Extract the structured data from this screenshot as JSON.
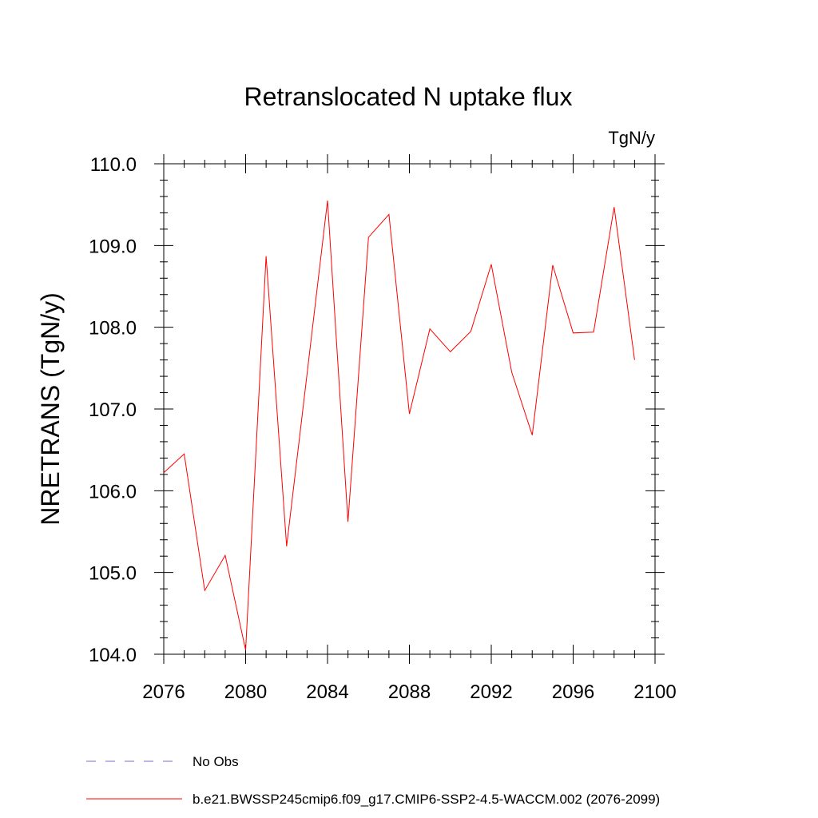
{
  "chart_data": {
    "type": "line",
    "title": "Retranslocated N uptake flux",
    "units": "TgN/y",
    "ylabel": "NRETRANS  (TgN/y)",
    "xlabel": "",
    "xlim": [
      2076,
      2100
    ],
    "ylim": [
      104.0,
      110.0
    ],
    "xticks": [
      2076,
      2080,
      2084,
      2088,
      2092,
      2096,
      2100
    ],
    "xtick_labels": [
      "2076",
      "2080",
      "2084",
      "2088",
      "2092",
      "2096",
      "2100"
    ],
    "yticks": [
      104.0,
      105.0,
      106.0,
      107.0,
      108.0,
      109.0,
      110.0
    ],
    "ytick_labels": [
      "104.0",
      "105.0",
      "106.0",
      "107.0",
      "108.0",
      "109.0",
      "110.0"
    ],
    "grid": false,
    "legend_position": "bottom",
    "series": [
      {
        "name": "b.e21.BWSSP245cmip6.f09_g17.CMIP6-SSP2-4.5-WACCM.002 (2076-2099)",
        "color": "#ff0000",
        "dash": "solid",
        "x": [
          2076,
          2077,
          2078,
          2079,
          2080,
          2081,
          2082,
          2083,
          2084,
          2085,
          2086,
          2087,
          2088,
          2089,
          2090,
          2091,
          2092,
          2093,
          2094,
          2095,
          2096,
          2097,
          2098,
          2099
        ],
        "y": [
          106.22,
          106.45,
          104.78,
          105.21,
          104.05,
          108.87,
          105.32,
          107.43,
          109.55,
          105.62,
          109.1,
          109.38,
          106.94,
          107.98,
          107.7,
          107.95,
          108.77,
          107.45,
          106.68,
          108.76,
          107.93,
          107.94,
          109.47,
          107.6
        ]
      }
    ],
    "legend": [
      {
        "label": "No Obs",
        "color": "#7b68c8",
        "dash": "dashed"
      },
      {
        "label": "b.e21.BWSSP245cmip6.f09_g17.CMIP6-SSP2-4.5-WACCM.002 (2076-2099)",
        "color": "#ff0000",
        "dash": "solid"
      }
    ]
  }
}
